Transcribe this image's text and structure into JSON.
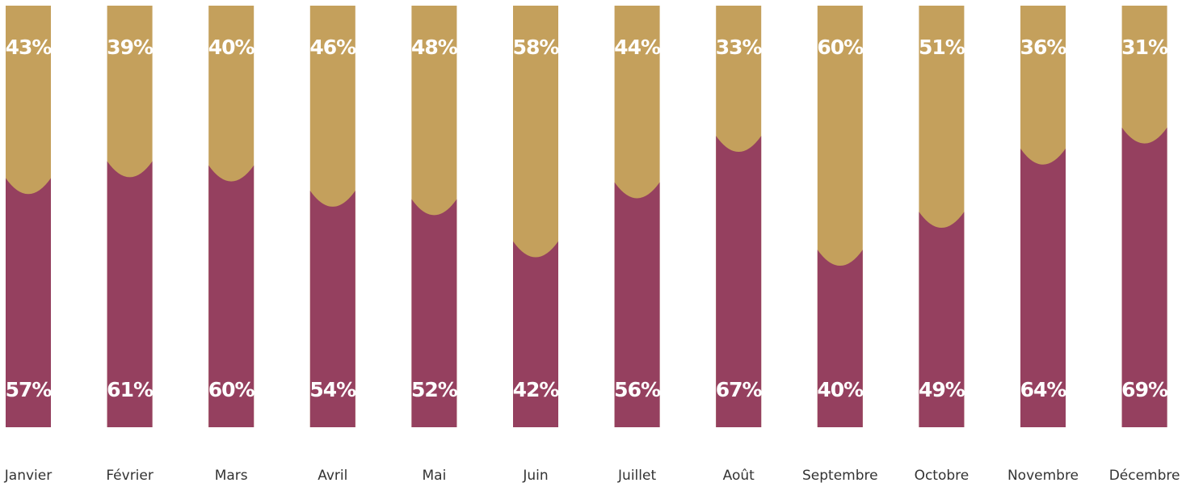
{
  "colors": {
    "top": "#c4a05c",
    "bottom": "#95405f",
    "label": "#ffffff",
    "axis_text": "#333333"
  },
  "chart_data": {
    "type": "bar",
    "stacked": true,
    "percent": true,
    "ylim": [
      0,
      100
    ],
    "categories": [
      "Janvier",
      "Février",
      "Mars",
      "Avril",
      "Mai",
      "Juin",
      "Juillet",
      "Août",
      "Septembre",
      "Octobre",
      "Novembre",
      "Décembre"
    ],
    "series": [
      {
        "values": [
          57,
          61,
          60,
          54,
          52,
          42,
          56,
          67,
          40,
          49,
          64,
          69
        ],
        "labels": [
          "57%",
          "61%",
          "60%",
          "54%",
          "52%",
          "42%",
          "56%",
          "67%",
          "40%",
          "49%",
          "64%",
          "69%"
        ]
      },
      {
        "values": [
          43,
          39,
          40,
          46,
          48,
          58,
          44,
          33,
          60,
          51,
          36,
          31
        ],
        "labels": [
          "43%",
          "39%",
          "40%",
          "46%",
          "48%",
          "58%",
          "44%",
          "33%",
          "60%",
          "51%",
          "36%",
          "31%"
        ]
      }
    ]
  }
}
